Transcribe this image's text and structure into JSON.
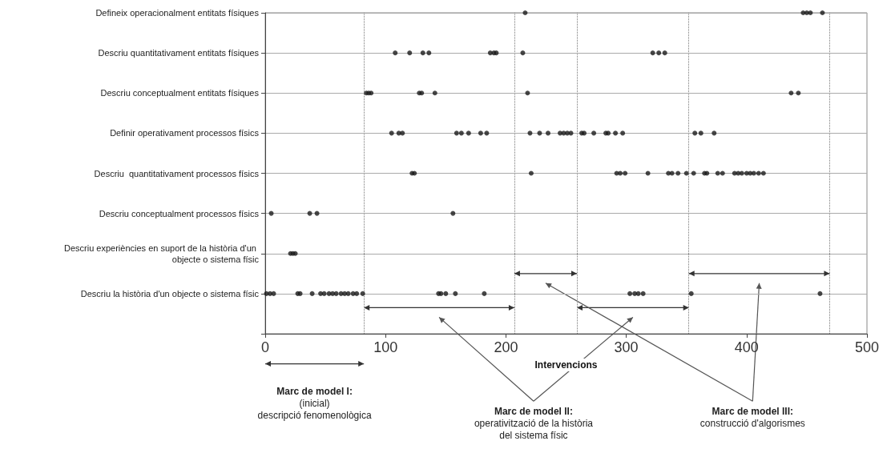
{
  "chart_data": {
    "type": "scatter",
    "xlabel": "Intervencions",
    "orientation": "horizontal",
    "color": "#1a1a1a",
    "marker": "circle",
    "grid": "y",
    "xlim": [
      0,
      500
    ],
    "xticks": [
      0,
      100,
      200,
      300,
      400,
      500
    ],
    "categories": [
      "Defineix operacionalment entitats físiques",
      "Descriu quantitativament entitats físiques",
      "Descriu conceptualment entitats físiques",
      "Definir operativament processos físics",
      "Descriu  quantitativament processos físics",
      "Descriu conceptualment processos físics",
      "Descriu experiències en suport de la història d'un objecte o sistema físic",
      "Descriu la història d'un objecte o sistema físic",
      null
    ],
    "series": [
      {
        "x": [
          "Defineix operacionalment entitats físiques",
          "Defineix operacionalment entitats físiques",
          "Defineix operacionalment entitats físiques",
          "Defineix operacionalment entitats físiques",
          "Defineix operacionalment entitats físiques"
        ],
        "values": [
          216,
          447,
          450,
          453,
          463
        ]
      },
      {
        "x": [
          "Descriu quantitativament entitats físiques",
          "Descriu quantitativament entitats físiques",
          "Descriu quantitativament entitats físiques",
          "Descriu quantitativament entitats físiques",
          "Descriu quantitativament entitats físiques",
          "Descriu quantitativament entitats físiques",
          "Descriu quantitativament entitats físiques",
          "Descriu quantitativament entitats físiques",
          "Descriu quantitativament entitats físiques",
          "Descriu quantitativament entitats físiques",
          "Descriu quantitativament entitats físiques"
        ],
        "values": [
          108,
          120,
          131,
          136,
          187,
          190,
          192,
          214,
          322,
          327,
          332
        ]
      },
      {
        "x": [
          "Descriu conceptualment entitats físiques",
          "Descriu conceptualment entitats físiques",
          "Descriu conceptualment entitats físiques",
          "Descriu conceptualment entitats físiques",
          "Descriu conceptualment entitats físiques",
          "Descriu conceptualment entitats físiques",
          "Descriu conceptualment entitats físiques",
          "Descriu conceptualment entitats físiques",
          "Descriu conceptualment entitats físiques"
        ],
        "values": [
          84,
          86,
          88,
          128,
          130,
          141,
          218,
          437,
          443
        ]
      },
      {
        "x": [
          "Definir operativament processos físics",
          "Definir operativament processos físics",
          "Definir operativament processos físics",
          "Definir operativament processos físics",
          "Definir operativament processos físics",
          "Definir operativament processos físics",
          "Definir operativament processos físics",
          "Definir operativament processos físics",
          "Definir operativament processos físics",
          "Definir operativament processos físics",
          "Definir operativament processos físics",
          "Definir operativament processos físics",
          "Definir operativament processos físics",
          "Definir operativament processos físics",
          "Definir operativament processos físics",
          "Definir operativament processos físics",
          "Definir operativament processos físics",
          "Definir operativament processos físics",
          "Definir operativament processos físics",
          "Definir operativament processos físics",
          "Definir operativament processos físics",
          "Definir operativament processos físics",
          "Definir operativament processos físics",
          "Definir operativament processos físics",
          "Definir operativament processos físics"
        ],
        "values": [
          105,
          111,
          114,
          159,
          163,
          169,
          179,
          184,
          220,
          228,
          235,
          245,
          248,
          251,
          254,
          263,
          265,
          273,
          283,
          285,
          291,
          297,
          357,
          362,
          373
        ]
      },
      {
        "x": [
          "Descriu  quantitativament processos físics",
          "Descriu  quantitativament processos físics",
          "Descriu  quantitativament processos físics",
          "Descriu  quantitativament processos físics",
          "Descriu  quantitativament processos físics",
          "Descriu  quantitativament processos físics",
          "Descriu  quantitativament processos físics",
          "Descriu  quantitativament processos físics",
          "Descriu  quantitativament processos físics",
          "Descriu  quantitativament processos físics",
          "Descriu  quantitativament processos físics",
          "Descriu  quantitativament processos físics",
          "Descriu  quantitativament processos físics",
          "Descriu  quantitativament processos físics",
          "Descriu  quantitativament processos físics",
          "Descriu  quantitativament processos físics",
          "Descriu  quantitativament processos físics",
          "Descriu  quantitativament processos físics",
          "Descriu  quantitativament processos físics",
          "Descriu  quantitativament processos físics",
          "Descriu  quantitativament processos físics",
          "Descriu  quantitativament processos físics",
          "Descriu  quantitativament processos físics",
          "Descriu  quantitativament processos físics"
        ],
        "values": [
          122,
          124,
          221,
          292,
          295,
          299,
          318,
          335,
          338,
          343,
          350,
          356,
          365,
          367,
          376,
          380,
          390,
          393,
          396,
          400,
          403,
          406,
          410,
          414
        ]
      },
      {
        "x": [
          "Descriu conceptualment processos físics",
          "Descriu conceptualment processos físics",
          "Descriu conceptualment processos físics",
          "Descriu conceptualment processos físics"
        ],
        "values": [
          5,
          37,
          43,
          156
        ]
      },
      {
        "x": [
          "Descriu experiències en suport de la història d'un objecte o sistema físic",
          "Descriu experiències en suport de la història d'un objecte o sistema físic",
          "Descriu experiències en suport de la història d'un objecte o sistema físic"
        ],
        "values": [
          21,
          23,
          25
        ]
      },
      {
        "x": [
          "Descriu la història d'un objecte o sistema físic",
          "Descriu la història d'un objecte o sistema físic",
          "Descriu la història d'un objecte o sistema físic",
          "Descriu la història d'un objecte o sistema físic",
          "Descriu la història d'un objecte o sistema físic",
          "Descriu la història d'un objecte o sistema físic",
          "Descriu la història d'un objecte o sistema físic",
          "Descriu la història d'un objecte o sistema físic",
          "Descriu la història d'un objecte o sistema físic",
          "Descriu la història d'un objecte o sistema físic",
          "Descriu la història d'un objecte o sistema físic",
          "Descriu la història d'un objecte o sistema físic",
          "Descriu la història d'un objecte o sistema físic",
          "Descriu la història d'un objecte o sistema físic",
          "Descriu la història d'un objecte o sistema físic",
          "Descriu la història d'un objecte o sistema físic",
          "Descriu la història d'un objecte o sistema físic",
          "Descriu la història d'un objecte o sistema físic",
          "Descriu la història d'un objecte o sistema físic",
          "Descriu la història d'un objecte o sistema físic",
          "Descriu la història d'un objecte o sistema físic",
          "Descriu la història d'un objecte o sistema físic",
          "Descriu la història d'un objecte o sistema físic",
          "Descriu la història d'un objecte o sistema físic",
          "Descriu la història d'un objecte o sistema físic",
          "Descriu la història d'un objecte o sistema físic",
          "Descriu la història d'un objecte o sistema físic",
          "Descriu la història d'un objecte o sistema físic"
        ],
        "values": [
          1,
          4,
          7,
          27,
          29,
          39,
          46,
          49,
          53,
          56,
          59,
          63,
          66,
          69,
          73,
          76,
          81,
          144,
          146,
          150,
          158,
          182,
          303,
          307,
          310,
          314,
          354,
          461
        ]
      }
    ],
    "ref_lines": [
      {
        "axis": "x",
        "value": 82,
        "line_style": "dotted"
      },
      {
        "axis": "x",
        "value": 207,
        "line_style": "dotted"
      },
      {
        "axis": "x",
        "value": 259,
        "line_style": "dotted"
      },
      {
        "axis": "x",
        "value": 352,
        "line_style": "dotted"
      },
      {
        "axis": "x",
        "value": 469,
        "line_style": "dotted"
      }
    ],
    "annotations": [
      "Marc de model I:\n(inicial)\ndescripció fenomenològica",
      "Marc de model II:\noperativització de la història\ndel sistema físic",
      "Marc de model III:\nconstrucció d'algorismes"
    ]
  }
}
